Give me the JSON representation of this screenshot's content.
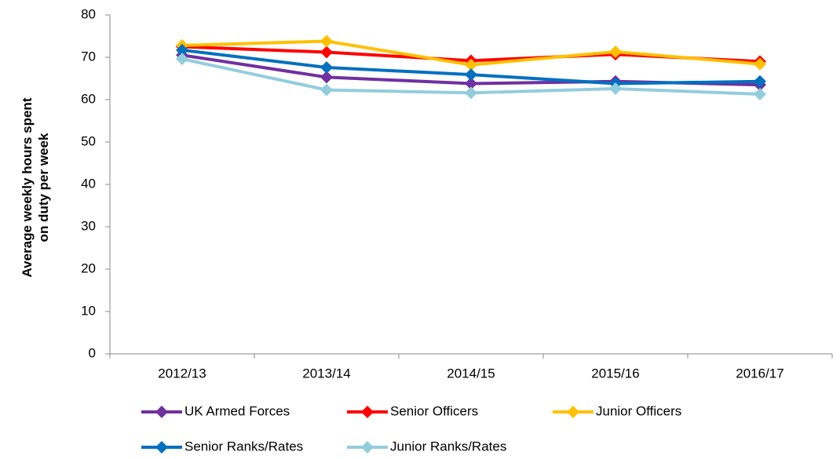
{
  "chart_data": {
    "type": "line",
    "y_label": "Average weekly hours spent on duty per week",
    "categories": [
      "2012/13",
      "2013/14",
      "2014/15",
      "2015/16",
      "2016/17"
    ],
    "series": [
      {
        "name": "UK Armed Forces",
        "color": "#7030a0",
        "values": [
          70.5,
          65.3,
          63.8,
          64.3,
          63.5
        ]
      },
      {
        "name": "Senior Officers",
        "color": "#ff0000",
        "values": [
          72.5,
          71.2,
          69.2,
          70.7,
          69.0
        ]
      },
      {
        "name": "Junior Officers",
        "color": "#ffc000",
        "values": [
          72.8,
          73.8,
          68.2,
          71.3,
          68.4
        ]
      },
      {
        "name": "Senior Ranks/Rates",
        "color": "#0070c0",
        "values": [
          71.7,
          67.6,
          65.9,
          63.8,
          64.3
        ]
      },
      {
        "name": "Junior Ranks/Rates",
        "color": "#92cddc",
        "values": [
          69.6,
          62.3,
          61.6,
          62.6,
          61.3
        ]
      }
    ],
    "ylim": [
      0,
      80
    ],
    "yticks": [
      0,
      10,
      20,
      30,
      40,
      50,
      60,
      70,
      80
    ],
    "legend": "bottom"
  }
}
